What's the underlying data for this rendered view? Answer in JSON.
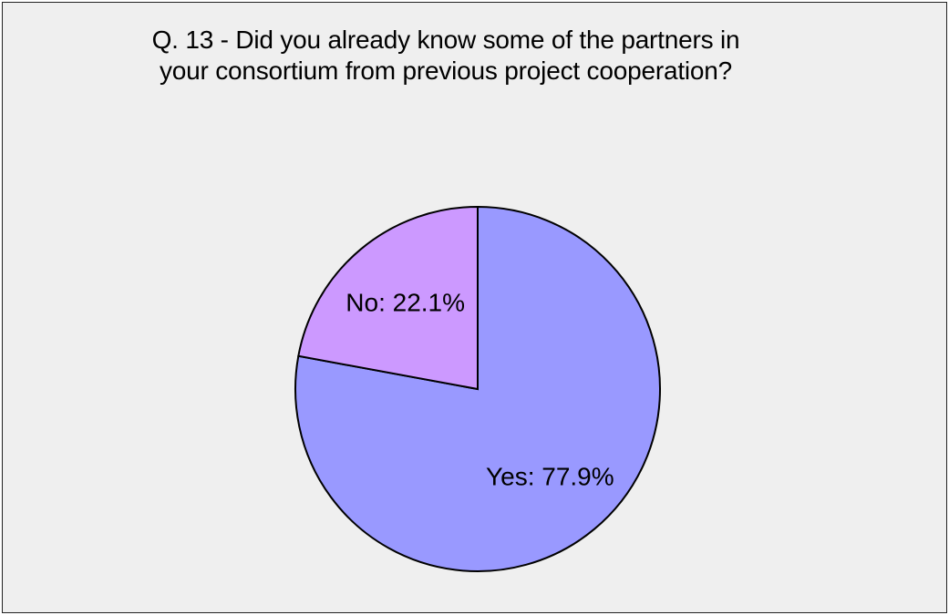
{
  "chart_data": {
    "type": "pie",
    "title": "Q. 13 - Did you already know some of the partners in your consortium from previous project cooperation?",
    "title_lines": [
      "Q. 13 - Did you already know some of the partners in",
      "your consortium from previous project cooperation?"
    ],
    "slices": [
      {
        "label": "Yes",
        "value": 77.9,
        "display": "Yes: 77.9%",
        "color": "#9999ff"
      },
      {
        "label": "No",
        "value": 22.1,
        "display": "No: 22.1%",
        "color": "#cc99ff"
      }
    ],
    "start_angle": "12 o'clock",
    "direction": "clockwise",
    "legend": "none",
    "background_color": "#efefef",
    "outline_color": "#000000"
  }
}
